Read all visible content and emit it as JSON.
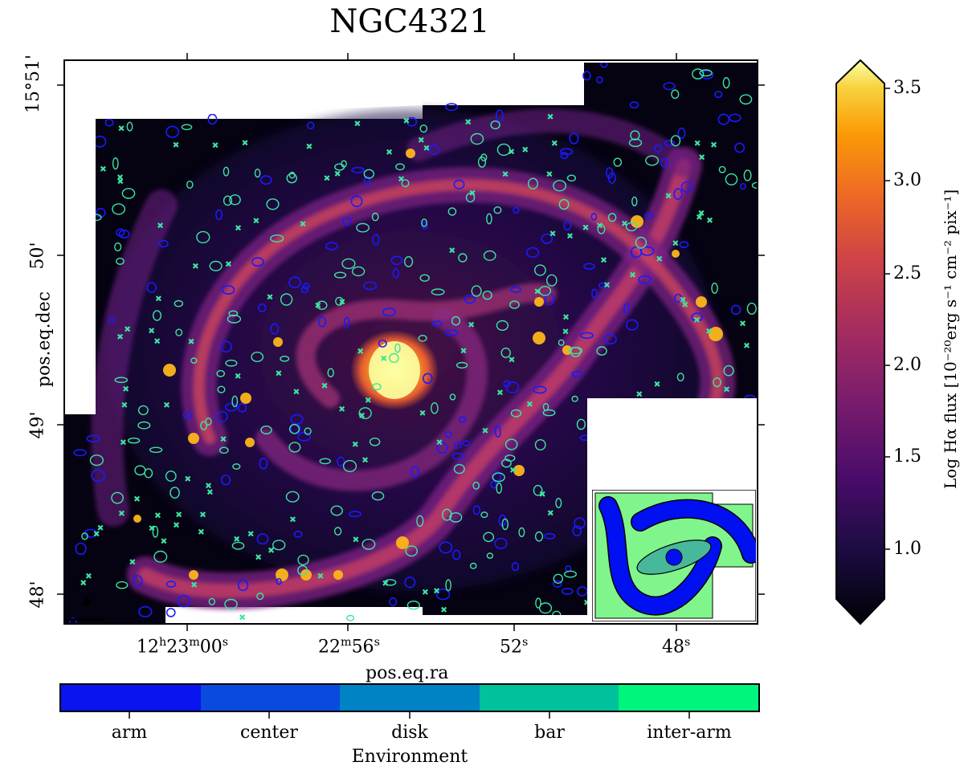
{
  "title": "NGC4321",
  "axes": {
    "xlabel": "pos.eq.ra",
    "ylabel": "pos.eq.dec",
    "x_ticks": [
      {
        "main": "12",
        "sup1": "h",
        "mid": "23",
        "sup2": "m",
        "end": "00",
        "sup3": "s"
      },
      {
        "main": "22",
        "sup1": "m",
        "mid": "56",
        "sup2": "s",
        "end": "",
        "sup3": ""
      },
      {
        "main": "52",
        "sup1": "s",
        "mid": "",
        "sup2": "",
        "end": "",
        "sup3": ""
      },
      {
        "main": "48",
        "sup1": "s",
        "mid": "",
        "sup2": "",
        "end": "",
        "sup3": ""
      }
    ],
    "y_ticks": [
      "15°51'",
      "50'",
      "49'",
      "48'"
    ]
  },
  "colorbar": {
    "label": "Log Hα flux [10⁻²⁰erg s⁻¹ cm⁻² pix⁻¹]",
    "ticks": [
      "3.5",
      "3.0",
      "2.5",
      "2.0",
      "1.5",
      "1.0"
    ],
    "tick_values": [
      3.5,
      3.0,
      2.5,
      2.0,
      1.5,
      1.0
    ],
    "range": [
      0.7,
      3.55
    ]
  },
  "environment": {
    "title": "Environment",
    "categories": [
      "arm",
      "center",
      "disk",
      "bar",
      "inter-arm"
    ],
    "colors": [
      "#0a14ee",
      "#0a4adf",
      "#0083c4",
      "#00c19b",
      "#00f57c"
    ]
  },
  "colors": {
    "background": "#000004",
    "arm_contour": "#1a1aff",
    "interarm_contour": "#3ce6a0",
    "inset_green": "#80f58c",
    "inset_blue": "#0010f0",
    "inset_bar": "#48b89a"
  }
}
